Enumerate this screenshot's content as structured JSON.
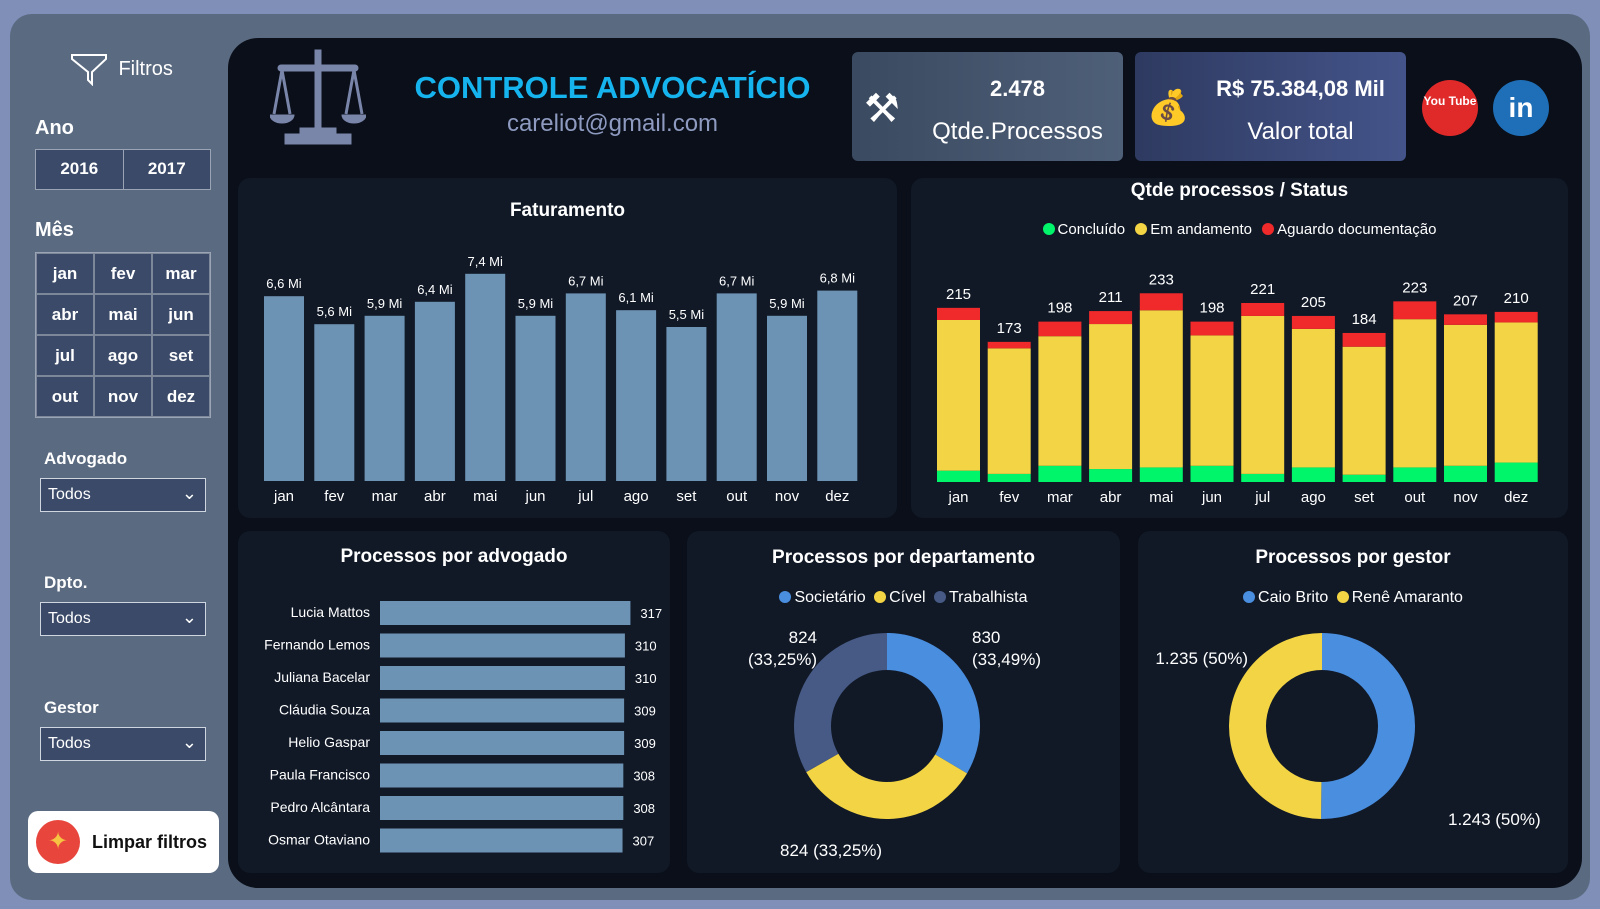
{
  "sidebar": {
    "filters_label": "Filtros",
    "year_label": "Ano",
    "years": [
      "2016",
      "2017"
    ],
    "month_label": "Mês",
    "months": [
      "jan",
      "fev",
      "mar",
      "abr",
      "mai",
      "jun",
      "jul",
      "ago",
      "set",
      "out",
      "nov",
      "dez"
    ],
    "advogado_label": "Advogado",
    "advogado_value": "Todos",
    "dpto_label": "Dpto.",
    "dpto_value": "Todos",
    "gestor_label": "Gestor",
    "gestor_value": "Todos",
    "clear_label": "Limpar filtros"
  },
  "header": {
    "title": "CONTROLE ADVOCATÍCIO",
    "email": "careliot@gmail.com"
  },
  "kpis": [
    {
      "value": "2.478",
      "label": "Qtde.Processos",
      "icon": "gavel-icon"
    },
    {
      "value": "R$ 75.384,08 Mil",
      "label": "Valor total",
      "icon": "money-hand-icon"
    }
  ],
  "social": {
    "youtube": "You Tube",
    "linkedin": "in"
  },
  "colors": {
    "bar": "#6d93b4",
    "concluido": "#00f56a",
    "andamento": "#f3d444",
    "aguardo": "#f02a2a",
    "societario": "#4a8ee0",
    "civel": "#f3d444",
    "trabalhista": "#475a85",
    "caio": "#4a8ee0",
    "rene": "#f3d444"
  },
  "chart_data": [
    {
      "type": "bar",
      "title": "Faturamento",
      "categories": [
        "jan",
        "fev",
        "mar",
        "abr",
        "mai",
        "jun",
        "jul",
        "ago",
        "set",
        "out",
        "nov",
        "dez"
      ],
      "values": [
        6.6,
        5.6,
        5.9,
        6.4,
        7.4,
        5.9,
        6.7,
        6.1,
        5.5,
        6.7,
        5.9,
        6.8
      ],
      "labels": [
        "6,6 Mi",
        "5,6 Mi",
        "5,9 Mi",
        "6,4 Mi",
        "7,4 Mi",
        "5,9 Mi",
        "6,7 Mi",
        "6,1 Mi",
        "5,5 Mi",
        "6,7 Mi",
        "5,9 Mi",
        "6,8 Mi"
      ]
    },
    {
      "type": "bar",
      "stacked": true,
      "title": "Qtde processos / Status",
      "legend": "top",
      "categories": [
        "jan",
        "fev",
        "mar",
        "abr",
        "mai",
        "jun",
        "jul",
        "ago",
        "set",
        "out",
        "nov",
        "dez"
      ],
      "totals": [
        215,
        173,
        198,
        211,
        233,
        198,
        221,
        205,
        184,
        223,
        207,
        210
      ],
      "series": [
        {
          "name": "Concluído",
          "values": [
            14,
            10,
            20,
            16,
            18,
            20,
            10,
            18,
            9,
            18,
            20,
            24
          ]
        },
        {
          "name": "Em andamento",
          "values": [
            186,
            155,
            160,
            179,
            194,
            161,
            195,
            171,
            158,
            183,
            174,
            173
          ]
        },
        {
          "name": "Aguardo documentação",
          "values": [
            15,
            8,
            18,
            16,
            21,
            17,
            16,
            16,
            17,
            22,
            13,
            13
          ]
        }
      ]
    },
    {
      "type": "bar",
      "orientation": "horizontal",
      "title": "Processos por advogado",
      "categories": [
        "Lucia Mattos",
        "Fernando Lemos",
        "Juliana Bacelar",
        "Cláudia Souza",
        "Helio Gaspar",
        "Paula Francisco",
        "Pedro Alcântara",
        "Osmar Otaviano"
      ],
      "values": [
        317,
        310,
        310,
        309,
        309,
        308,
        308,
        307
      ]
    },
    {
      "type": "pie",
      "donut": true,
      "title": "Processos por departamento",
      "legend": "top",
      "slices": [
        {
          "name": "Societário",
          "value": 830,
          "label": "830",
          "pct": "(33,49%)"
        },
        {
          "name": "Cível",
          "value": 824,
          "label": "824 (33,25%)"
        },
        {
          "name": "Trabalhista",
          "value": 824,
          "label": "824",
          "pct": "(33,25%)"
        }
      ]
    },
    {
      "type": "pie",
      "donut": true,
      "title": "Processos por gestor",
      "legend": "top",
      "slices": [
        {
          "name": "Caio Brito",
          "value": 1243,
          "label": "1.243 (50%)"
        },
        {
          "name": "Renê Amaranto",
          "value": 1235,
          "label": "1.235 (50%)"
        }
      ]
    }
  ]
}
